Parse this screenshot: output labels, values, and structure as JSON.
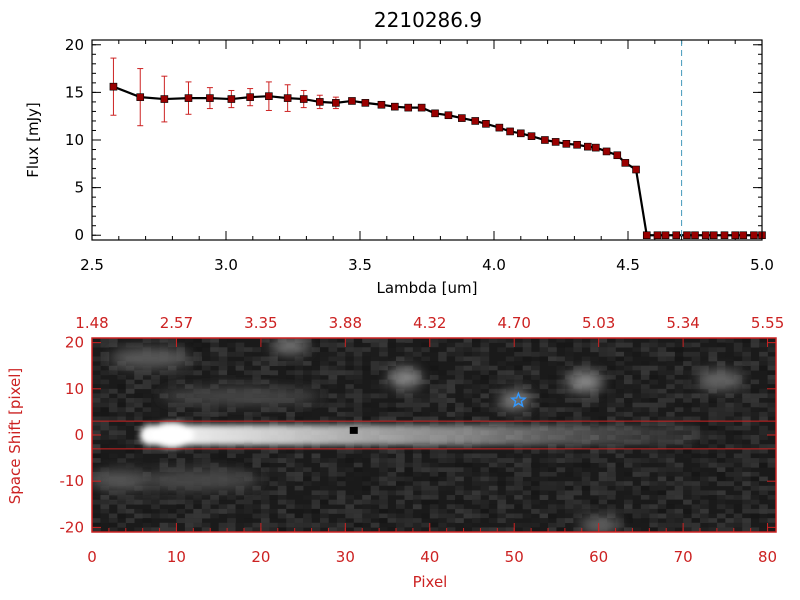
{
  "chart_data": [
    {
      "type": "line",
      "title": "2210286.9",
      "xlabel": "Lambda [um]",
      "ylabel": "Flux [mJy]",
      "xlim": [
        2.5,
        5.0
      ],
      "ylim": [
        -0.5,
        20.5
      ],
      "xticks": [
        "2.5",
        "3.0",
        "3.5",
        "4.0",
        "4.5",
        "5.0"
      ],
      "yticks": [
        "0",
        "5",
        "10",
        "15",
        "20"
      ],
      "series": [
        {
          "x": [
            2.58,
            2.68,
            2.77,
            2.86,
            2.94,
            3.02,
            3.09,
            3.16,
            3.23,
            3.29,
            3.35,
            3.41,
            3.47,
            3.52,
            3.58,
            3.63,
            3.68,
            3.73,
            3.78,
            3.83,
            3.88,
            3.93,
            3.97,
            4.02,
            4.06,
            4.1,
            4.14,
            4.19,
            4.23,
            4.27,
            4.31,
            4.35,
            4.38,
            4.42,
            4.46,
            4.49,
            4.53,
            4.57,
            4.61,
            4.64,
            4.68,
            4.72,
            4.75,
            4.79,
            4.82,
            4.86,
            4.9,
            4.93,
            4.97,
            5.0
          ],
          "y": [
            15.6,
            14.5,
            14.3,
            14.4,
            14.4,
            14.3,
            14.5,
            14.6,
            14.4,
            14.3,
            14.0,
            13.9,
            14.1,
            13.9,
            13.7,
            13.5,
            13.4,
            13.4,
            12.8,
            12.6,
            12.3,
            12.0,
            11.7,
            11.3,
            10.9,
            10.7,
            10.4,
            10.0,
            9.8,
            9.6,
            9.5,
            9.3,
            9.2,
            8.8,
            8.4,
            7.6,
            6.9,
            0.0,
            0.0,
            0.0,
            0.0,
            0.0,
            0.0,
            0.0,
            0.0,
            0.0,
            0.0,
            0.0,
            0.0,
            0.0
          ],
          "err": [
            3.0,
            3.0,
            2.4,
            1.7,
            1.1,
            0.9,
            0.9,
            1.5,
            1.4,
            0.9,
            0.7,
            0.6,
            0.2,
            0.2,
            0.2,
            0.2,
            0.2,
            0.2,
            0.2,
            0.2,
            0.2,
            0.2,
            0.2,
            0.2,
            0.2,
            0.2,
            0.2,
            0.2,
            0.2,
            0.2,
            0.2,
            0.2,
            0.2,
            0.2,
            0.2,
            0.2,
            0.2,
            0.1,
            0.1,
            0.1,
            0.1,
            0.1,
            0.1,
            0.1,
            0.1,
            0.1,
            0.1,
            0.1,
            0.1,
            0.1
          ],
          "line_color": "#000000",
          "marker_color": "#990000",
          "error_color": "#cc2222"
        }
      ],
      "vline": {
        "x": 4.7,
        "color": "#4499bb",
        "style": "dashed"
      }
    },
    {
      "type": "heatmap",
      "xlabel": "Pixel",
      "ylabel": "Space Shift [pixel]",
      "xlim": [
        0,
        81
      ],
      "ylim": [
        -21,
        21
      ],
      "xticks": [
        "0",
        "10",
        "20",
        "30",
        "40",
        "50",
        "60",
        "70",
        "80"
      ],
      "yticks": [
        "-20",
        "-10",
        "0",
        "10",
        "20"
      ],
      "top_axis_ticks": [
        "1.48",
        "2.57",
        "3.35",
        "3.88",
        "4.32",
        "4.70",
        "5.03",
        "5.34",
        "5.55"
      ],
      "axis_color": "#cc2222",
      "extraction_lines": [
        3,
        -3
      ],
      "marker_star": {
        "x": 50.5,
        "y": 7.5,
        "color": "#3399ff"
      },
      "marker_dot": {
        "x": 31,
        "y": 1
      },
      "colormap": "grayscale"
    }
  ]
}
